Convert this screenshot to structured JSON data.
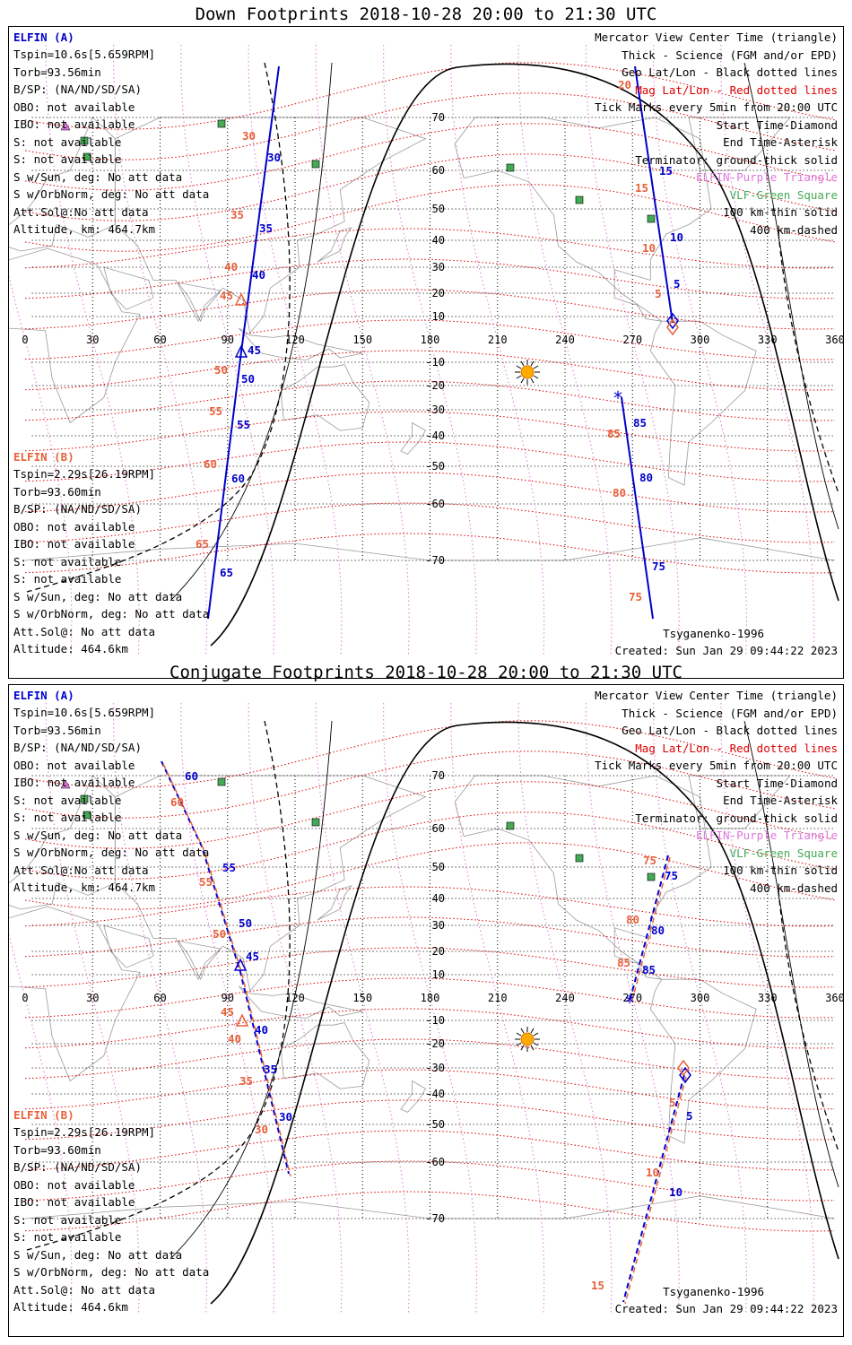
{
  "panels": [
    {
      "title": "Down Footprints 2018-10-28 20:00 to 21:30 UTC",
      "elfin_a": {
        "header": "ELFIN (A)",
        "lines": [
          "Tspin=10.6s[5.659RPM]",
          "Torb=93.56min",
          "B/SP: (NA/ND/SD/SA)",
          "OBO: not available",
          "IBO: not available",
          "S: not available",
          "S: not available",
          "S w/Sun, deg: No att data",
          "S w/OrbNorm, deg: No att data",
          "Att.Sol@:No att data",
          "Altitude, km: 464.7km"
        ]
      },
      "elfin_b": {
        "header": "ELFIN (B)",
        "lines": [
          "Tspin=2.29s[26.19RPM]",
          "Torb=93.60min",
          "B/SP: (NA/ND/SD/SA)",
          "OBO: not available",
          "IBO: not available",
          "S: not available",
          "S: not available",
          "S w/Sun, deg: No att data",
          "S w/OrbNorm, deg: No att data",
          "Att.Sol@: No att data",
          "Altitude: 464.6km"
        ]
      },
      "model": "Tsyganenko-1996",
      "created": "Created: Sun Jan 29 09:44:22 2023",
      "track_a_labels": [
        "30",
        "35",
        "40",
        "45",
        "50",
        "55",
        "60",
        "65"
      ],
      "track_b_labels": [
        "30",
        "35",
        "40",
        "45",
        "50",
        "55",
        "60",
        "65"
      ],
      "track2_a_labels": [
        "15",
        "10",
        "5",
        "85",
        "80",
        "75"
      ],
      "track2_b_labels": [
        "20",
        "15",
        "10",
        "5",
        "85",
        "80",
        "75"
      ]
    },
    {
      "title": "Conjugate Footprints 2018-10-28 20:00 to 21:30 UTC",
      "elfin_a": {
        "header": "ELFIN (A)",
        "lines": [
          "Tspin=10.6s[5.659RPM]",
          "Torb=93.56min",
          "B/SP: (NA/ND/SD/SA)",
          "OBO: not available",
          "IBO: not available",
          "S: not available",
          "S: not available",
          "S w/Sun, deg: No att data",
          "S w/OrbNorm, deg: No att data",
          "Att.Sol@:No att data",
          "Altitude, km: 464.7km"
        ]
      },
      "elfin_b": {
        "header": "ELFIN (B)",
        "lines": [
          "Tspin=2.29s[26.19RPM]",
          "Torb=93.60min",
          "B/SP: (NA/ND/SD/SA)",
          "OBO: not available",
          "IBO: not available",
          "S: not available",
          "S: not available",
          "S w/Sun, deg: No att data",
          "S w/OrbNorm, deg: No att data",
          "Att.Sol@: No att data",
          "Altitude: 464.6km"
        ]
      },
      "model": "Tsyganenko-1996",
      "created": "Created: Sun Jan 29 09:44:22 2023",
      "track_a_labels": [
        "60",
        "55",
        "50",
        "45",
        "40",
        "35",
        "30"
      ],
      "track_b_labels": [
        "60",
        "55",
        "50",
        "45",
        "40",
        "35",
        "30"
      ],
      "track2_a_labels": [
        "75",
        "80",
        "85",
        "5",
        "10"
      ],
      "track2_b_labels": [
        "75",
        "80",
        "85",
        "5",
        "10",
        "15"
      ]
    }
  ],
  "legend": [
    {
      "text": "Mercator View Center Time (triangle)",
      "color": "#000000"
    },
    {
      "text": "Thick - Science (FGM and/or EPD)",
      "color": "#000000"
    },
    {
      "text": "Geo Lat/Lon - Black dotted lines",
      "color": "#000000"
    },
    {
      "text": "Mag Lat/Lon - Red dotted lines",
      "color": "#dd0000"
    },
    {
      "text": "Tick Marks every 5min from 20:00 UTC",
      "color": "#000000"
    },
    {
      "text": "Start Time-Diamond",
      "color": "#000000"
    },
    {
      "text": "End Time-Asterisk",
      "color": "#000000"
    },
    {
      "text": "Terminator: ground-thick solid",
      "color": "#000000"
    },
    {
      "text": "ELFIN-Purple Triangle",
      "color": "#dd77dd"
    },
    {
      "text": "VLF-Green Square",
      "color": "#44aa55"
    },
    {
      "text": "100 km-thin solid",
      "color": "#000000"
    },
    {
      "text": "400 km-dashed",
      "color": "#000000"
    }
  ],
  "axes": {
    "lon_ticks": [
      "0",
      "30",
      "60",
      "90",
      "120",
      "150",
      "180",
      "210",
      "240",
      "270",
      "300",
      "330",
      "360"
    ],
    "lat_ticks": [
      "70",
      "60",
      "50",
      "40",
      "30",
      "20",
      "10",
      "-10",
      "-20",
      "-30",
      "-40",
      "-50",
      "-60",
      "-70"
    ]
  },
  "colors": {
    "elfin_a": "#0000cc",
    "elfin_b": "#e8603a",
    "geo_grid": "#000000",
    "mag_grid": "#dd0000",
    "sun": "#ffaa00",
    "vlf": "#44aa55",
    "elfin_marker": "#dd77dd"
  }
}
